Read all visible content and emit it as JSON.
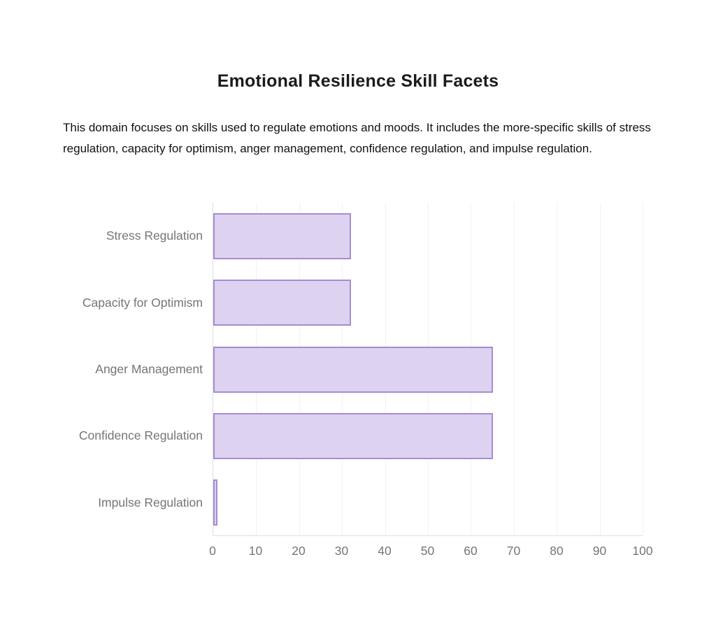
{
  "page": {
    "title": "Emotional Resilience Skill Facets",
    "description": "This domain focuses on skills used to regulate emotions and moods. It includes the more-specific skills of stress regulation, capacity for optimism, anger management, confidence regulation, and impulse regulation."
  },
  "chart_data": {
    "type": "bar",
    "orientation": "horizontal",
    "title": "Emotional Resilience Skill Facets",
    "categories": [
      "Stress Regulation",
      "Capacity for Optimism",
      "Anger Management",
      "Confidence Regulation",
      "Impulse Regulation"
    ],
    "values": [
      32,
      32,
      65,
      65,
      1
    ],
    "xlim": [
      0,
      100
    ],
    "x_ticks": [
      0,
      10,
      20,
      30,
      40,
      50,
      60,
      70,
      80,
      90,
      100
    ],
    "grid": "vertical",
    "legend": false,
    "colors": {
      "bar_fill": "#ddd2f0",
      "bar_border": "#a78cd3",
      "grid_line": "#f2f2f2",
      "axis_line": "#e0e0e0",
      "tick_label": "#757575",
      "category_label": "#757575"
    }
  }
}
